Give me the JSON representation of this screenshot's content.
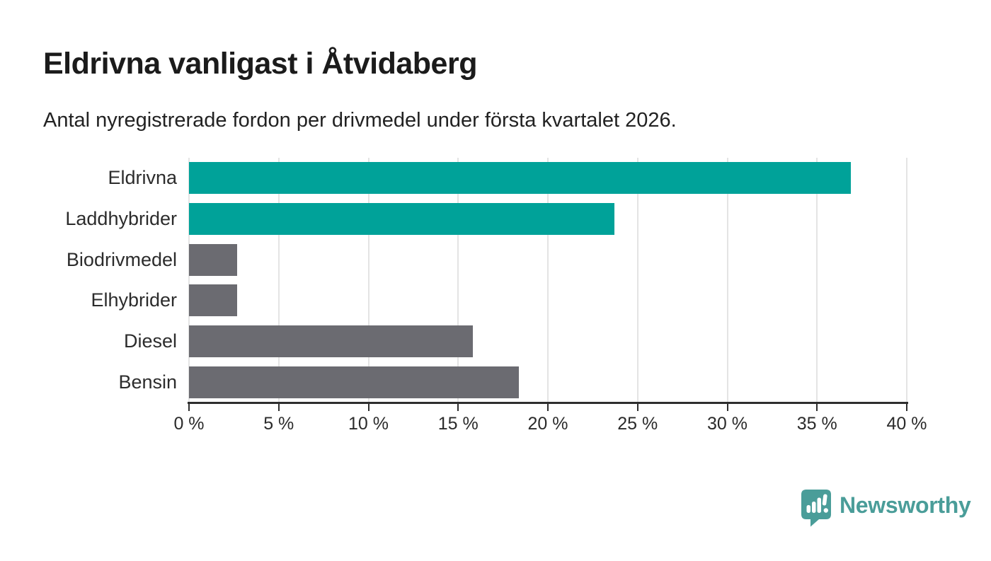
{
  "header": {
    "title": "Eldrivna vanligast i Åtvidaberg",
    "subtitle": "Antal nyregistrerade fordon per drivmedel under första kvartalet 2026."
  },
  "chart_data": {
    "type": "bar",
    "orientation": "horizontal",
    "title": "Eldrivna vanligast i Åtvidaberg",
    "subtitle": "Antal nyregistrerade fordon per drivmedel under första kvartalet 2026.",
    "categories": [
      "Eldrivna",
      "Laddhybrider",
      "Biodrivmedel",
      "Elhybrider",
      "Diesel",
      "Bensin"
    ],
    "values": [
      36.9,
      23.7,
      2.7,
      2.7,
      15.8,
      18.4
    ],
    "unit": "%",
    "colors": [
      "#00a299",
      "#00a299",
      "#6b6b71",
      "#6b6b71",
      "#6b6b71",
      "#6b6b71"
    ],
    "highlight_color": "#00a299",
    "base_color": "#6b6b71",
    "xlim": [
      0,
      40
    ],
    "x_ticks": [
      0,
      5,
      10,
      15,
      20,
      25,
      30,
      35,
      40
    ],
    "x_tick_labels": [
      "0 %",
      "5 %",
      "10 %",
      "15 %",
      "20 %",
      "25 %",
      "30 %",
      "35 %",
      "40 %"
    ],
    "grid": true,
    "gridline_color": "#e4e4e4",
    "legend": "none"
  },
  "branding": {
    "logo_text": "Newsworthy",
    "logo_color": "#4a9d99",
    "logo_icon": "newsworthy-speech-bubble-bar-chart-icon"
  }
}
